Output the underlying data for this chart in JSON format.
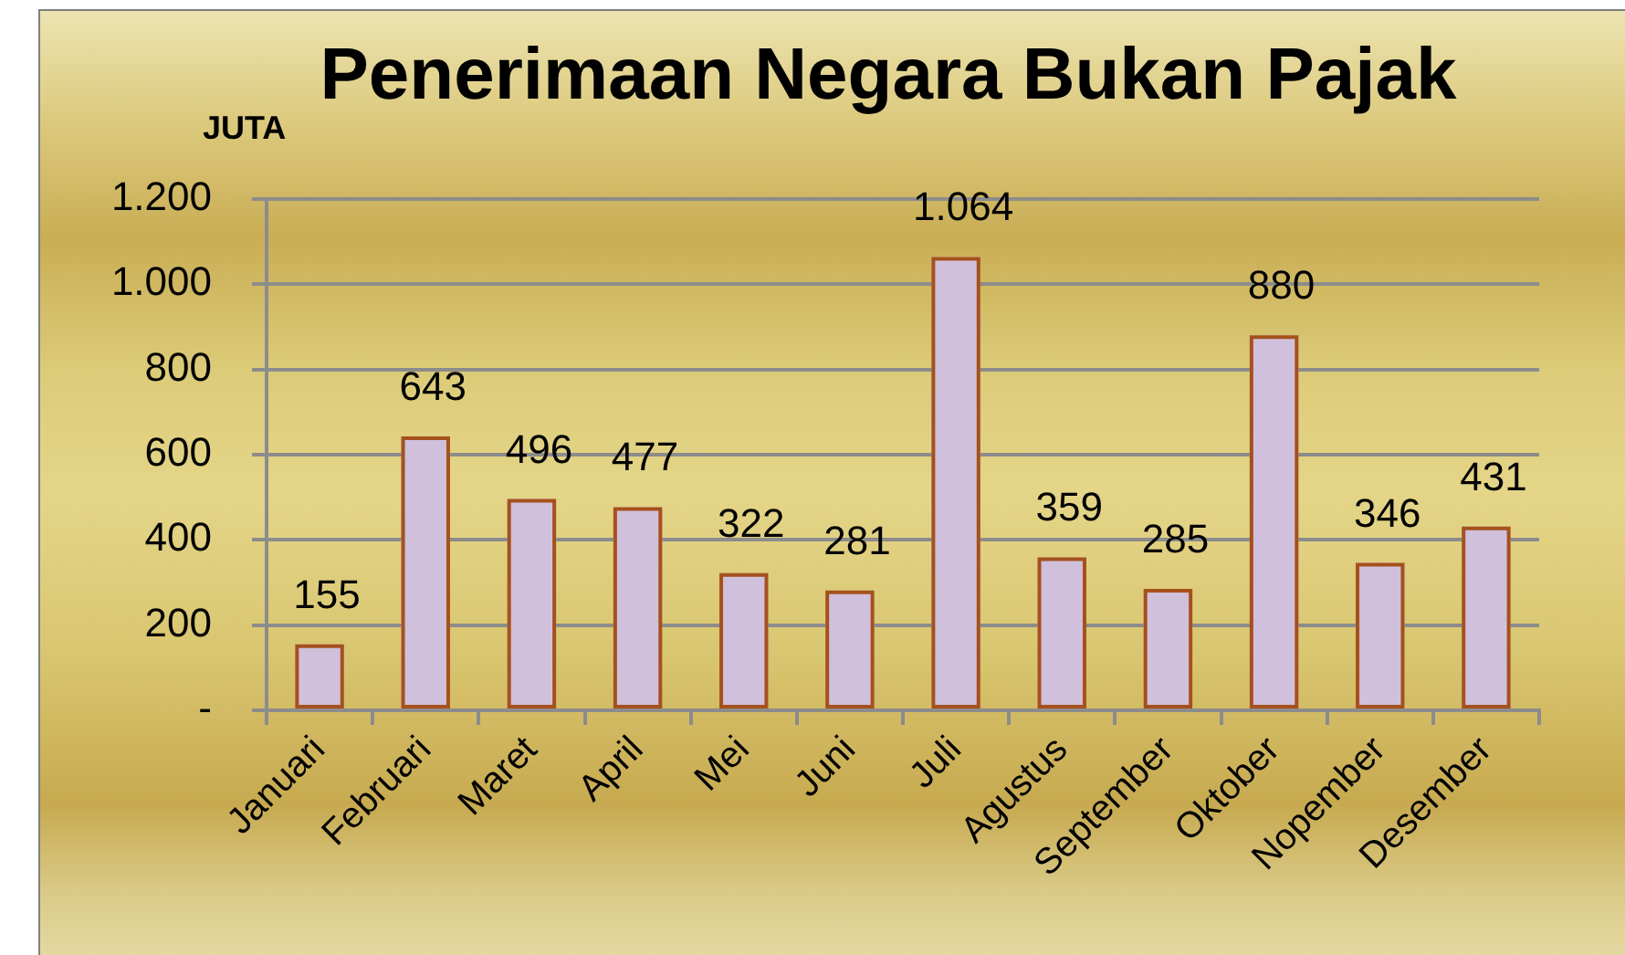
{
  "chart_data": {
    "type": "bar",
    "title": "Penerimaan Negara Bukan Pajak",
    "ylabel": "JUTA",
    "categories": [
      "Januari",
      "Februari",
      "Maret",
      "April",
      "Mei",
      "Juni",
      "Juli",
      "Agustus",
      "September",
      "Oktober",
      "Nopember",
      "Desember"
    ],
    "values": [
      155,
      643,
      496,
      477,
      322,
      281,
      1064,
      359,
      285,
      880,
      346,
      431
    ],
    "value_labels": [
      "155",
      "643",
      "496",
      "477",
      "322",
      "281",
      "1.064",
      "359",
      "285",
      "880",
      "346",
      "431"
    ],
    "color": "#d0c0dc",
    "ylim": [
      0,
      1200
    ],
    "yticks": [
      {
        "value": 0,
        "label": "-"
      },
      200,
      400,
      600,
      800,
      {
        "value": 1000,
        "label": "1.000"
      },
      {
        "value": 1200,
        "label": "1.200"
      }
    ],
    "grid": "y",
    "legend": false
  }
}
